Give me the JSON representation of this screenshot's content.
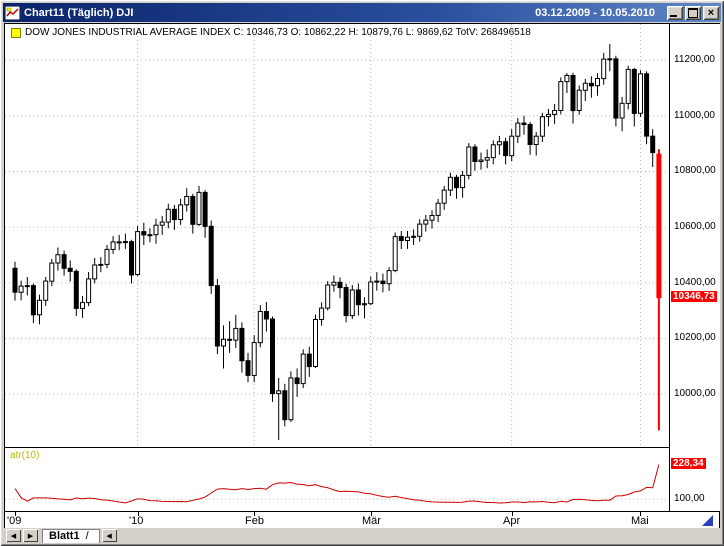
{
  "window": {
    "title": "Chart11 (Täglich)  DJI",
    "date_range": "03.12.2009 - 10.05.2010"
  },
  "header": {
    "symbol_info": "DOW JONES INDUSTRIAL AVERAGE INDEX C: 10346,73 O: 10862,22 H: 10879,76 L: 9869,62 TotV: 268496518"
  },
  "tabs": {
    "prev_button": "◀",
    "next_button": "▶",
    "sheet_tab": "Blatt1",
    "tab_slash": "/",
    "scroll_left_button": "◀"
  },
  "colors": {
    "titlebar_blue": "#0a246a",
    "crash_candle_red": "#ff0000",
    "indicator_red": "#cc0000",
    "marker_red": "#ff0000",
    "atr_label_yellow": "#b8b800"
  },
  "chart_data": {
    "type": "candlestick",
    "instrument": "DOW JONES INDUSTRIAL AVERAGE INDEX",
    "timeframe": "Täglich",
    "symbol": "DJI",
    "date_range": "03.12.2009 - 10.05.2010",
    "ohlc_last": {
      "open": 10862.22,
      "high": 10879.76,
      "low": 9869.62,
      "close": 10346.73,
      "total_volume": 268496518
    },
    "y_axis": {
      "min": 9810,
      "max": 11330,
      "ticks": [
        {
          "label": "11200,00",
          "value": 11200
        },
        {
          "label": "11000,00",
          "value": 11000
        },
        {
          "label": "10800,00",
          "value": 10800
        },
        {
          "label": "10600,00",
          "value": 10600
        },
        {
          "label": "10400,00",
          "value": 10400
        },
        {
          "label": "10200,00",
          "value": 10200
        },
        {
          "label": "10000,00",
          "value": 10000
        }
      ]
    },
    "x_axis": {
      "ticks": [
        {
          "label": "'09",
          "index": 0
        },
        {
          "label": "'10",
          "index": 20
        },
        {
          "label": "Feb",
          "index": 39
        },
        {
          "label": "Mär",
          "index": 58
        },
        {
          "label": "Apr",
          "index": 81
        },
        {
          "label": "Mai",
          "index": 102
        }
      ]
    },
    "price_marker": {
      "label": "10346,73",
      "value": 10346.73
    },
    "last_candle_color": "#ff0000",
    "candles": [
      [
        10452,
        10476,
        10336,
        10366
      ],
      [
        10366,
        10408,
        10337,
        10388
      ],
      [
        10388,
        10421,
        10355,
        10390
      ],
      [
        10390,
        10397,
        10255,
        10285
      ],
      [
        10285,
        10357,
        10251,
        10337
      ],
      [
        10337,
        10421,
        10317,
        10406
      ],
      [
        10406,
        10486,
        10388,
        10471
      ],
      [
        10471,
        10527,
        10444,
        10501
      ],
      [
        10501,
        10516,
        10426,
        10452
      ],
      [
        10452,
        10480,
        10405,
        10441
      ],
      [
        10441,
        10449,
        10281,
        10308
      ],
      [
        10308,
        10353,
        10274,
        10329
      ],
      [
        10329,
        10439,
        10316,
        10414
      ],
      [
        10414,
        10489,
        10398,
        10464
      ],
      [
        10464,
        10492,
        10438,
        10466
      ],
      [
        10466,
        10536,
        10452,
        10520
      ],
      [
        10520,
        10568,
        10504,
        10547
      ],
      [
        10547,
        10572,
        10517,
        10545
      ],
      [
        10545,
        10577,
        10522,
        10548
      ],
      [
        10548,
        10555,
        10398,
        10428
      ],
      [
        10430,
        10605,
        10425,
        10584
      ],
      [
        10584,
        10616,
        10536,
        10572
      ],
      [
        10572,
        10596,
        10546,
        10573
      ],
      [
        10573,
        10630,
        10540,
        10607
      ],
      [
        10607,
        10640,
        10572,
        10618
      ],
      [
        10618,
        10684,
        10596,
        10664
      ],
      [
        10664,
        10680,
        10590,
        10627
      ],
      [
        10627,
        10702,
        10608,
        10680
      ],
      [
        10680,
        10740,
        10656,
        10710
      ],
      [
        10710,
        10720,
        10577,
        10610
      ],
      [
        10610,
        10748,
        10604,
        10725
      ],
      [
        10725,
        10733,
        10562,
        10603
      ],
      [
        10603,
        10624,
        10360,
        10390
      ],
      [
        10390,
        10414,
        10144,
        10173
      ],
      [
        10173,
        10247,
        10092,
        10197
      ],
      [
        10197,
        10262,
        10148,
        10194
      ],
      [
        10194,
        10285,
        10166,
        10236
      ],
      [
        10236,
        10258,
        10077,
        10120
      ],
      [
        10120,
        10148,
        10043,
        10067
      ],
      [
        10067,
        10212,
        10043,
        10185
      ],
      [
        10185,
        10320,
        10168,
        10297
      ],
      [
        10297,
        10331,
        10225,
        10270
      ],
      [
        10270,
        10279,
        9972,
        10002
      ],
      [
        10002,
        10058,
        9835,
        10012
      ],
      [
        10012,
        10037,
        9884,
        9908
      ],
      [
        9908,
        10082,
        9900,
        10058
      ],
      [
        10058,
        10092,
        9990,
        10038
      ],
      [
        10038,
        10161,
        10022,
        10144
      ],
      [
        10144,
        10170,
        10062,
        10099
      ],
      [
        10099,
        10286,
        10094,
        10268
      ],
      [
        10268,
        10330,
        10246,
        10309
      ],
      [
        10309,
        10406,
        10301,
        10392
      ],
      [
        10392,
        10426,
        10368,
        10402
      ],
      [
        10402,
        10419,
        10345,
        10383
      ],
      [
        10383,
        10397,
        10258,
        10282
      ],
      [
        10282,
        10392,
        10270,
        10374
      ],
      [
        10374,
        10398,
        10283,
        10321
      ],
      [
        10321,
        10348,
        10272,
        10325
      ],
      [
        10325,
        10422,
        10320,
        10403
      ],
      [
        10403,
        10438,
        10372,
        10406
      ],
      [
        10406,
        10433,
        10366,
        10397
      ],
      [
        10397,
        10456,
        10371,
        10444
      ],
      [
        10444,
        10581,
        10438,
        10566
      ],
      [
        10566,
        10586,
        10521,
        10552
      ],
      [
        10552,
        10586,
        10522,
        10564
      ],
      [
        10564,
        10592,
        10536,
        10567
      ],
      [
        10567,
        10629,
        10548,
        10611
      ],
      [
        10611,
        10644,
        10584,
        10625
      ],
      [
        10625,
        10661,
        10595,
        10642
      ],
      [
        10642,
        10701,
        10618,
        10686
      ],
      [
        10686,
        10748,
        10662,
        10733
      ],
      [
        10733,
        10796,
        10712,
        10779
      ],
      [
        10779,
        10788,
        10702,
        10742
      ],
      [
        10742,
        10802,
        10706,
        10786
      ],
      [
        10786,
        10902,
        10772,
        10888
      ],
      [
        10888,
        10898,
        10803,
        10836
      ],
      [
        10836,
        10868,
        10806,
        10841
      ],
      [
        10841,
        10879,
        10812,
        10850
      ],
      [
        10850,
        10912,
        10826,
        10896
      ],
      [
        10896,
        10928,
        10860,
        10907
      ],
      [
        10907,
        10921,
        10826,
        10857
      ],
      [
        10857,
        10952,
        10837,
        10927
      ],
      [
        10927,
        10992,
        10902,
        10974
      ],
      [
        10974,
        11000,
        10932,
        10969
      ],
      [
        10969,
        10978,
        10860,
        10897
      ],
      [
        10897,
        10942,
        10857,
        10927
      ],
      [
        10927,
        11011,
        10906,
        10997
      ],
      [
        10997,
        11025,
        10962,
        11005
      ],
      [
        11005,
        11043,
        10970,
        11019
      ],
      [
        11019,
        11138,
        11005,
        11123
      ],
      [
        11123,
        11154,
        11082,
        11145
      ],
      [
        11145,
        11155,
        10972,
        11019
      ],
      [
        11019,
        11109,
        11004,
        11092
      ],
      [
        11092,
        11133,
        11053,
        11117
      ],
      [
        11117,
        11142,
        11065,
        11108
      ],
      [
        11108,
        11153,
        11072,
        11134
      ],
      [
        11134,
        11226,
        11112,
        11204
      ],
      [
        11204,
        11258,
        11160,
        11205
      ],
      [
        11205,
        11216,
        10962,
        10992
      ],
      [
        10992,
        11068,
        10944,
        11045
      ],
      [
        11045,
        11180,
        11023,
        11167
      ],
      [
        11167,
        11172,
        10962,
        11009
      ],
      [
        11009,
        11164,
        10996,
        11151
      ],
      [
        11151,
        11160,
        10898,
        10927
      ],
      [
        10927,
        10952,
        10816,
        10868
      ],
      [
        10862.22,
        10879.76,
        9869.62,
        10346.73
      ]
    ],
    "indicator": {
      "name": "atr(10)",
      "type": "line",
      "period": 10,
      "color": "#cc0000",
      "marker": {
        "label": "228,34",
        "value": 228.34
      },
      "y_ticks": [
        {
          "label": "100,00",
          "value": 100
        }
      ],
      "range": {
        "min": 52,
        "max": 292
      }
    }
  }
}
